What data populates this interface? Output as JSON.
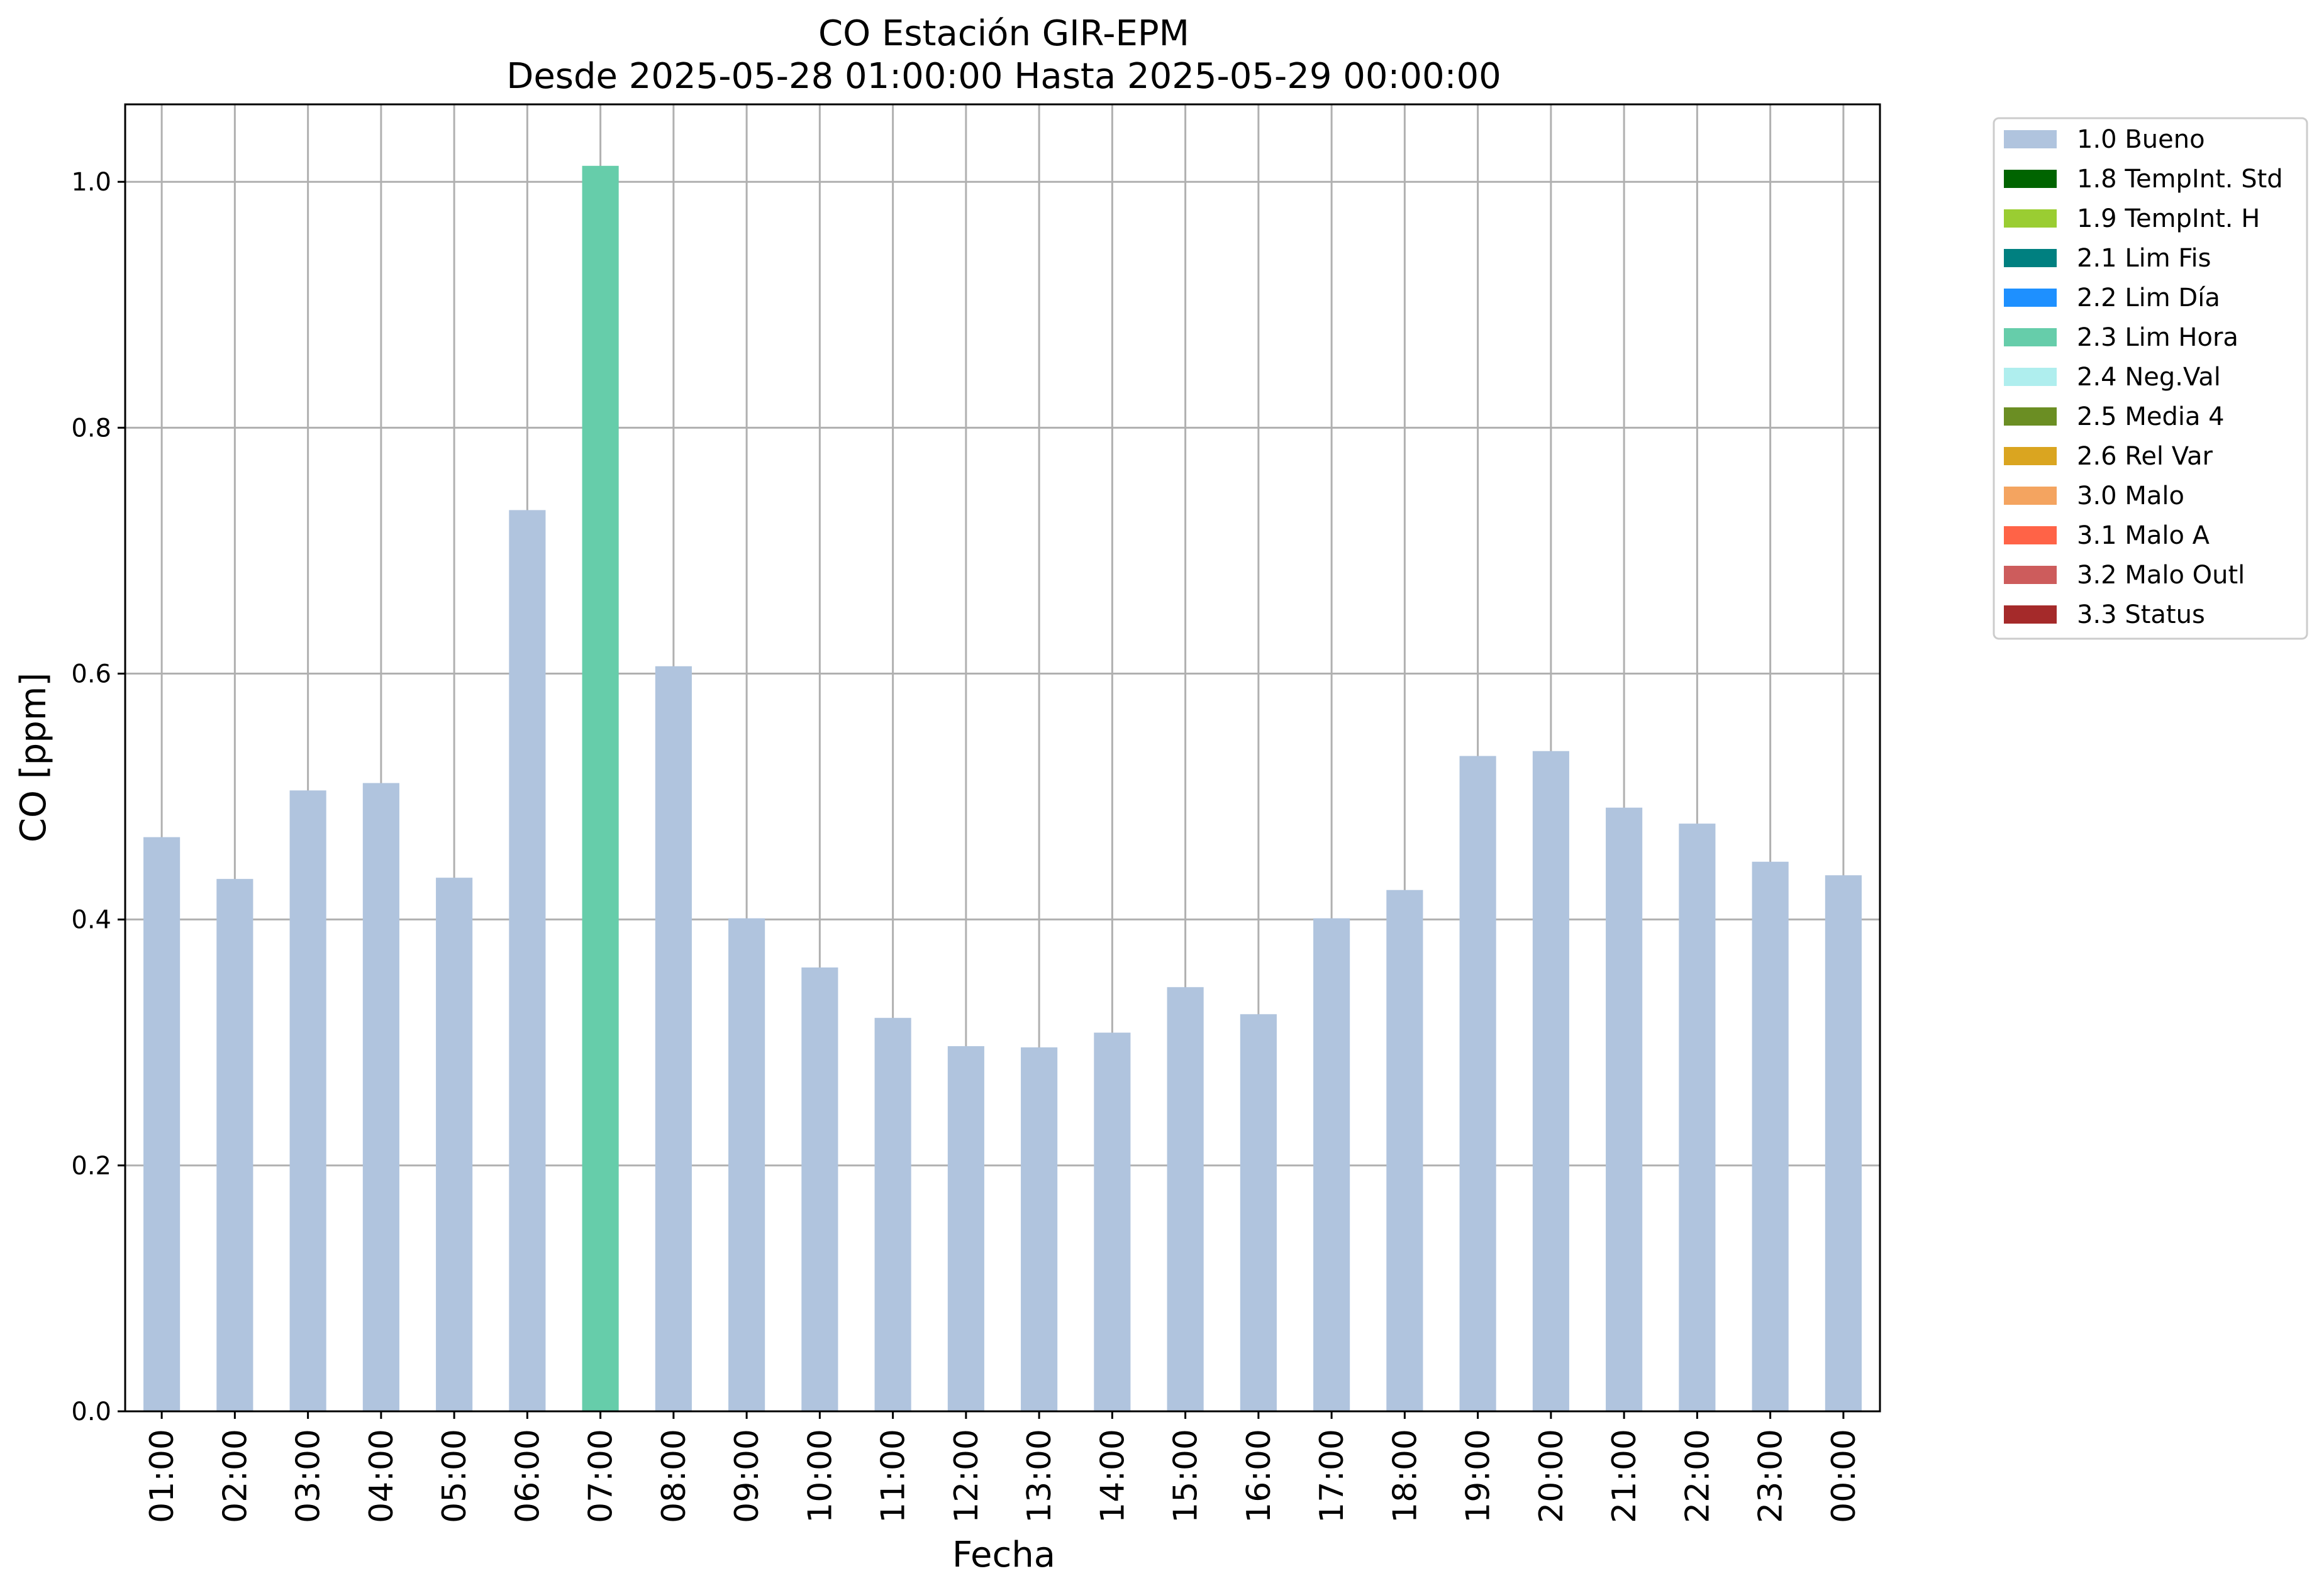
{
  "chart_data": {
    "type": "bar",
    "title_line1": "CO Estación GIR-EPM",
    "title_line2": "Desde 2025-05-28 01:00:00 Hasta 2025-05-29 00:00:00",
    "xlabel": "Fecha",
    "ylabel": "CO [ppm]",
    "ylim": [
      0,
      1.063
    ],
    "yticks": [
      "0.0",
      "0.2",
      "0.4",
      "0.6",
      "0.8",
      "1.0"
    ],
    "grid": true,
    "legend_placement": "outside-top-right",
    "categories": [
      "01:00",
      "02:00",
      "03:00",
      "04:00",
      "05:00",
      "06:00",
      "07:00",
      "08:00",
      "09:00",
      "10:00",
      "11:00",
      "12:00",
      "13:00",
      "14:00",
      "15:00",
      "16:00",
      "17:00",
      "18:00",
      "19:00",
      "20:00",
      "21:00",
      "22:00",
      "23:00",
      "00:00"
    ],
    "values": [
      0.467,
      0.433,
      0.505,
      0.511,
      0.434,
      0.733,
      1.013,
      0.606,
      0.401,
      0.361,
      0.32,
      0.297,
      0.296,
      0.308,
      0.345,
      0.323,
      0.401,
      0.424,
      0.533,
      0.537,
      0.491,
      0.478,
      0.447,
      0.436
    ],
    "bar_flags": [
      "1.0 Bueno",
      "1.0 Bueno",
      "1.0 Bueno",
      "1.0 Bueno",
      "1.0 Bueno",
      "1.0 Bueno",
      "2.3 Lim Hora",
      "1.0 Bueno",
      "1.0 Bueno",
      "1.0 Bueno",
      "1.0 Bueno",
      "1.0 Bueno",
      "1.0 Bueno",
      "1.0 Bueno",
      "1.0 Bueno",
      "1.0 Bueno",
      "1.0 Bueno",
      "1.0 Bueno",
      "1.0 Bueno",
      "1.0 Bueno",
      "1.0 Bueno",
      "1.0 Bueno",
      "1.0 Bueno",
      "1.0 Bueno"
    ],
    "legend": [
      {
        "label": "1.0 Bueno",
        "color": "#b0c4de"
      },
      {
        "label": "1.8 TempInt. Std",
        "color": "#006400"
      },
      {
        "label": "1.9 TempInt. H",
        "color": "#9acd32"
      },
      {
        "label": "2.1 Lim Fis",
        "color": "#008080"
      },
      {
        "label": "2.2 Lim Día",
        "color": "#1e90ff"
      },
      {
        "label": "2.3 Lim Hora",
        "color": "#66cdaa"
      },
      {
        "label": "2.4 Neg.Val",
        "color": "#afeeee"
      },
      {
        "label": "2.5 Media 4",
        "color": "#6b8e23"
      },
      {
        "label": "2.6 Rel Var",
        "color": "#daa520"
      },
      {
        "label": "3.0 Malo",
        "color": "#f4a460"
      },
      {
        "label": "3.1 Malo A",
        "color": "#ff6347"
      },
      {
        "label": "3.2 Malo Outl",
        "color": "#cd5c5c"
      },
      {
        "label": "3.3 Status",
        "color": "#a52a2a"
      }
    ]
  }
}
